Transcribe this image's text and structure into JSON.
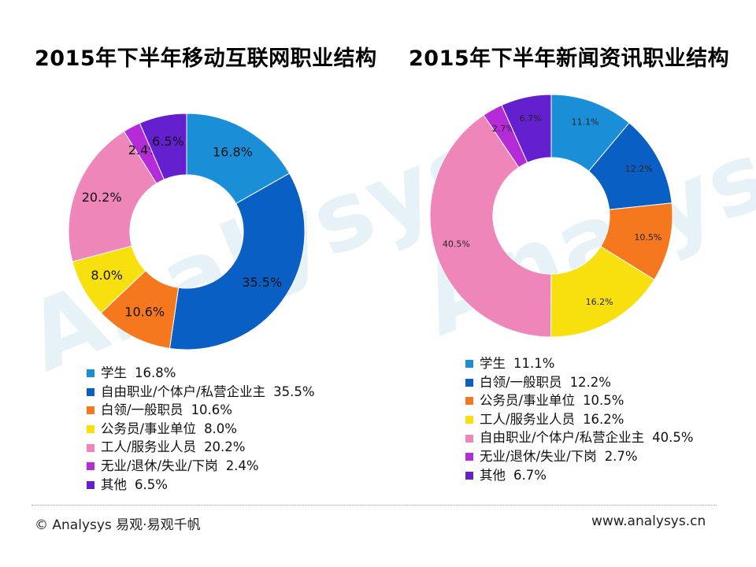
{
  "watermark": "Analysys",
  "footer": {
    "left": "© Analysys 易观·易观千帆",
    "right": "www.analysys.cn"
  },
  "colors": {
    "student": "#1a8fd8",
    "freelance": "#0a5fc4",
    "whitecollar": "#f5781e",
    "civil": "#f7e00e",
    "worker": "#ef86ba",
    "unemployed": "#b52bd7",
    "other": "#6420cf"
  },
  "chart_data": [
    {
      "type": "pie",
      "title": "2015年下半年移动互联网职业结构",
      "unit": "%",
      "slices": [
        {
          "label": "学生",
          "value": 16.8,
          "color": "#1a8fd8"
        },
        {
          "label": "自由职业/个体户/私营企业主",
          "value": 35.5,
          "color": "#0a5fc4"
        },
        {
          "label": "白领/一般职员",
          "value": 10.6,
          "color": "#f5781e"
        },
        {
          "label": "公务员/事业单位",
          "value": 8.0,
          "color": "#f7e00e"
        },
        {
          "label": "工人/服务业人员",
          "value": 20.2,
          "color": "#ef86ba"
        },
        {
          "label": "无业/退休/失业/下岗",
          "value": 2.4,
          "color": "#b52bd7"
        },
        {
          "label": "其他",
          "value": 6.5,
          "color": "#6420cf"
        }
      ],
      "legend_placement": "bottom"
    },
    {
      "type": "pie",
      "title": "2015年下半年新闻资讯职业结构",
      "unit": "%",
      "slices": [
        {
          "label": "学生",
          "value": 11.1,
          "color": "#1a8fd8"
        },
        {
          "label": "白领/一般职员",
          "value": 12.2,
          "color": "#0a5fc4"
        },
        {
          "label": "公务员/事业单位",
          "value": 10.5,
          "color": "#f5781e"
        },
        {
          "label": "工人/服务业人员",
          "value": 16.2,
          "color": "#f7e00e"
        },
        {
          "label": "自由职业/个体户/私营企业主",
          "value": 40.5,
          "color": "#ef86ba"
        },
        {
          "label": "无业/退休/失业/下岗",
          "value": 2.7,
          "color": "#b52bd7"
        },
        {
          "label": "其他",
          "value": 6.7,
          "color": "#6420cf"
        }
      ],
      "legend_placement": "bottom"
    }
  ]
}
